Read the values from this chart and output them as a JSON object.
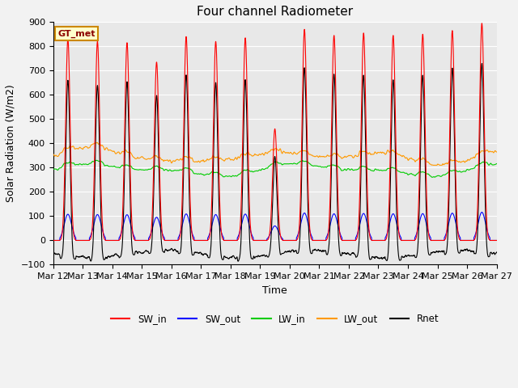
{
  "title": "Four channel Radiometer",
  "xlabel": "Time",
  "ylabel": "Solar Radiation (W/m2)",
  "ylim": [
    -100,
    900
  ],
  "yticks": [
    -100,
    0,
    100,
    200,
    300,
    400,
    500,
    600,
    700,
    800,
    900
  ],
  "x_tick_labels": [
    "Mar 12",
    "Mar 13",
    "Mar 14",
    "Mar 15",
    "Mar 16",
    "Mar 17",
    "Mar 18",
    "Mar 19",
    "Mar 20",
    "Mar 21",
    "Mar 22",
    "Mar 23",
    "Mar 24",
    "Mar 25",
    "Mar 26",
    "Mar 27"
  ],
  "station_label": "GT_met",
  "colors": {
    "SW_in": "#ff0000",
    "SW_out": "#0000ff",
    "LW_in": "#00cc00",
    "LW_out": "#ff9900",
    "Rnet": "#000000"
  },
  "sw_peaks": [
    830,
    820,
    815,
    735,
    840,
    820,
    835,
    460,
    870,
    845,
    855,
    845,
    850,
    865,
    895
  ],
  "lw_in_base": 300,
  "lw_out_base": 360,
  "background_color": "#e8e8e8",
  "grid_color": "#ffffff",
  "title_fontsize": 11,
  "label_fontsize": 9,
  "tick_fontsize": 8,
  "n_days": 15,
  "pts_per_day": 240
}
